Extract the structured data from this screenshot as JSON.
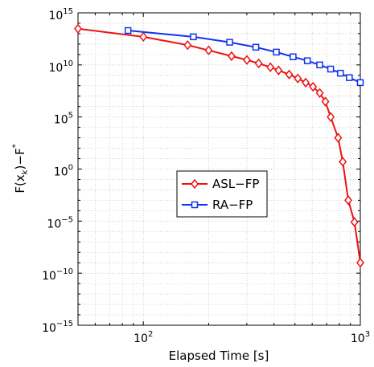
{
  "chart_data": {
    "type": "line",
    "xscale": "log",
    "yscale": "log",
    "xlabel": "Elapsed Time [s]",
    "ylabel_main": "F(x",
    "ylabel_sub": "k",
    "ylabel_tail": ")−F",
    "ylabel_sup": "*",
    "xlim": [
      50,
      1000
    ],
    "ylim": [
      1e-15,
      1000000000000000.0
    ],
    "x_ticks": [
      {
        "value": 100,
        "base": "10",
        "exp": "2"
      },
      {
        "value": 1000,
        "base": "10",
        "exp": "3"
      }
    ],
    "y_ticks": [
      {
        "value": 1000000000000000.0,
        "base": "10",
        "exp": "15"
      },
      {
        "value": 10000000000.0,
        "base": "10",
        "exp": "10"
      },
      {
        "value": 100000.0,
        "base": "10",
        "exp": "5"
      },
      {
        "value": 1,
        "base": "10",
        "exp": "0"
      },
      {
        "value": 1e-05,
        "base": "10",
        "exp": "−5"
      },
      {
        "value": 1e-10,
        "base": "10",
        "exp": "−10"
      },
      {
        "value": 1e-15,
        "base": "10",
        "exp": "−15"
      }
    ],
    "grid": true,
    "legend_position": "center",
    "series": [
      {
        "name": "ASL−FP",
        "color": "#ee1111",
        "marker": "diamond",
        "x": [
          50,
          100,
          160,
          200,
          255,
          300,
          340,
          385,
          420,
          470,
          515,
          560,
          605,
          650,
          690,
          730,
          790,
          830,
          880,
          940,
          1000
        ],
        "y": [
          30000000000000.0,
          5000000000000.0,
          800000000000.0,
          250000000000.0,
          70000000000.0,
          30000000000.0,
          14000000000.0,
          6000000000.0,
          3000000000.0,
          1200000000.0,
          500000000.0,
          200000000.0,
          80000000.0,
          20000000.0,
          3000000.0,
          100000.0,
          1000.0,
          5.0,
          0.001,
          8e-06,
          1e-09
        ]
      },
      {
        "name": "RA−FP",
        "color": "#1133ee",
        "marker": "square",
        "x": [
          85,
          170,
          250,
          330,
          410,
          490,
          570,
          650,
          730,
          810,
          890,
          1000
        ],
        "y": [
          20000000000000.0,
          5000000000000.0,
          1500000000000.0,
          500000000000.0,
          170000000000.0,
          60000000000.0,
          25000000000.0,
          10000000000.0,
          4000000000.0,
          1600000000.0,
          600000000.0,
          200000000.0
        ]
      }
    ]
  }
}
